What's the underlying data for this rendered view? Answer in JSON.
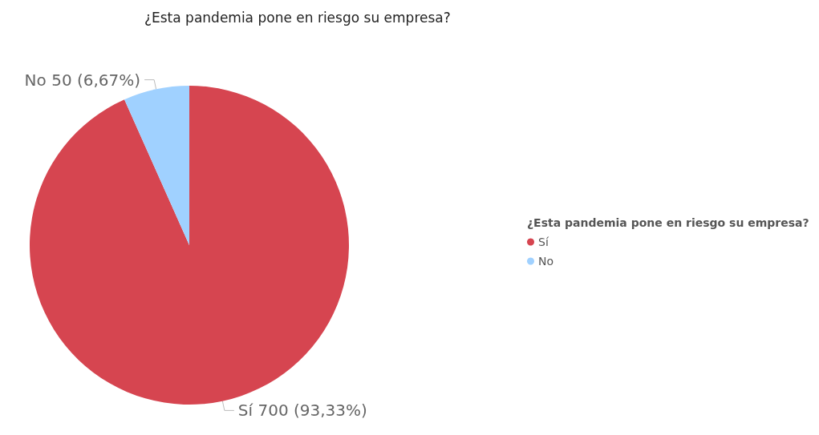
{
  "chart_data": {
    "type": "pie",
    "title": "¿Esta pandemia pone en riesgo su empresa?",
    "legend_title": "¿Esta pandemia pone en riesgo su empresa?",
    "categories": [
      "Sí",
      "No"
    ],
    "values": [
      700,
      50
    ],
    "colors": [
      "#d64550",
      "#a0d1ff"
    ],
    "value_labels": [
      "Sí 700 (93,33%)",
      "No 50 (6,67%)"
    ],
    "legend": "right"
  }
}
